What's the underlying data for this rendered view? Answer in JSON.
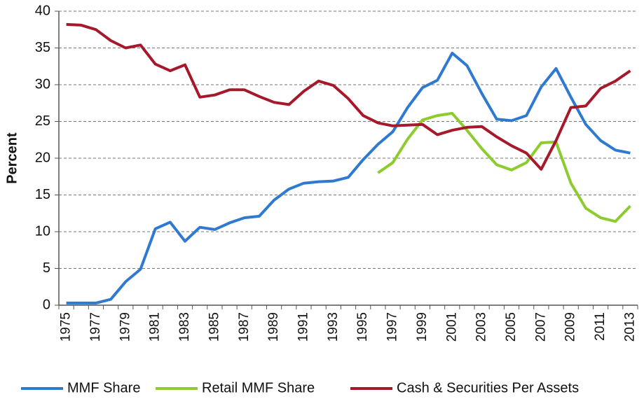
{
  "chart_data": {
    "type": "line",
    "ylabel": "Percent",
    "categories": [
      "1975",
      null,
      "1977",
      null,
      "1979",
      null,
      "1981",
      null,
      "1983",
      null,
      "1985",
      null,
      "1987",
      null,
      "1989",
      null,
      "1991",
      null,
      "1993",
      null,
      "1995",
      null,
      "1997",
      null,
      "1999",
      null,
      "2001",
      null,
      "2003",
      null,
      "2005",
      null,
      "2007",
      null,
      "2009",
      null,
      "2011",
      null,
      "2013"
    ],
    "series": [
      {
        "name": "MMF Share",
        "color": "#2f7ad0",
        "values": [
          0.3,
          0.3,
          0.3,
          0.8,
          3.2,
          4.9,
          10.4,
          11.3,
          8.7,
          10.6,
          10.3,
          11.2,
          11.9,
          12.1,
          14.3,
          15.8,
          16.6,
          16.8,
          16.9,
          17.4,
          19.8,
          21.9,
          23.6,
          26.9,
          29.6,
          30.6,
          34.3,
          32.6,
          28.8,
          25.3,
          25.1,
          25.8,
          29.7,
          32.2,
          28.3,
          24.6,
          22.4,
          21.1,
          20.7
        ]
      },
      {
        "name": "Retail MMF Share",
        "color": "#8dcb2f",
        "values": [
          null,
          null,
          null,
          null,
          null,
          null,
          null,
          null,
          null,
          null,
          null,
          null,
          null,
          null,
          null,
          null,
          null,
          null,
          null,
          null,
          null,
          18.0,
          19.4,
          22.6,
          25.2,
          25.8,
          26.1,
          23.8,
          21.3,
          19.1,
          18.4,
          19.4,
          22.1,
          22.2,
          16.6,
          13.2,
          11.9,
          11.4,
          13.5
        ]
      },
      {
        "name": "Cash & Securities Per Assets",
        "color": "#a6192b",
        "values": [
          38.2,
          38.1,
          37.5,
          36.0,
          35.0,
          35.4,
          32.8,
          31.9,
          32.7,
          28.3,
          28.6,
          29.3,
          29.3,
          28.4,
          27.6,
          27.3,
          29.1,
          30.5,
          29.9,
          28.1,
          25.8,
          24.8,
          24.4,
          24.5,
          24.6,
          23.2,
          23.8,
          24.2,
          24.3,
          22.9,
          21.7,
          20.7,
          18.5,
          22.4,
          26.9,
          27.1,
          29.5,
          30.5,
          31.9
        ]
      }
    ],
    "ylim": [
      0,
      40
    ],
    "yticks": [
      0,
      5,
      10,
      15,
      20,
      25,
      30,
      35,
      40
    ],
    "grid": true,
    "legend": "bottom"
  }
}
